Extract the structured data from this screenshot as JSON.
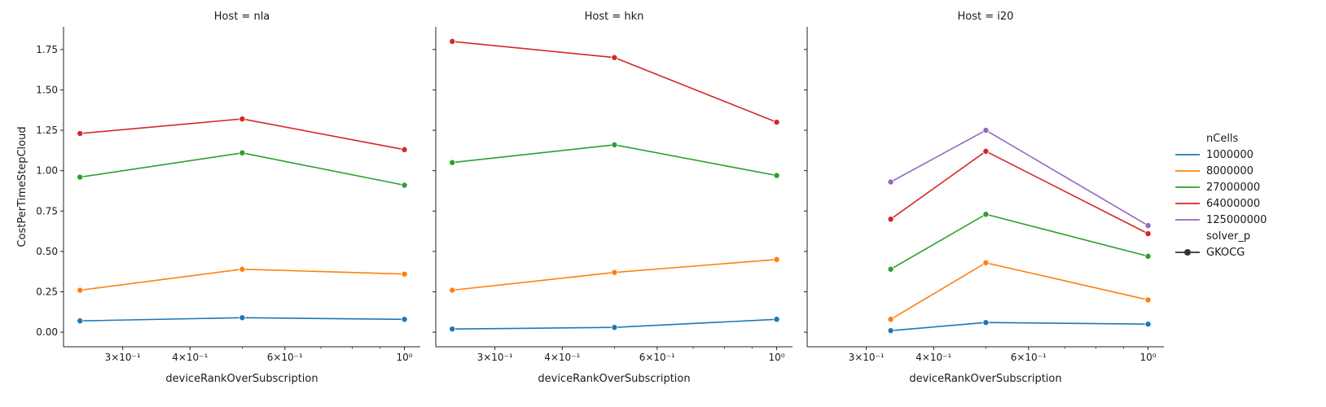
{
  "chart_data": {
    "type": "line",
    "facet_prefix": "Host = ",
    "facets": [
      {
        "title": "Host = nla",
        "x": [
          0.25,
          0.5,
          1.0
        ],
        "series": [
          {
            "name": "1000000",
            "values": [
              0.07,
              0.09,
              0.08
            ]
          },
          {
            "name": "8000000",
            "values": [
              0.26,
              0.39,
              0.36
            ]
          },
          {
            "name": "27000000",
            "values": [
              0.96,
              1.11,
              0.91
            ]
          },
          {
            "name": "64000000",
            "values": [
              1.23,
              1.32,
              1.13
            ]
          }
        ]
      },
      {
        "title": "Host = hkn",
        "x": [
          0.25,
          0.5,
          1.0
        ],
        "series": [
          {
            "name": "1000000",
            "values": [
              0.02,
              0.03,
              0.08
            ]
          },
          {
            "name": "8000000",
            "values": [
              0.26,
              0.37,
              0.45
            ]
          },
          {
            "name": "27000000",
            "values": [
              1.05,
              1.16,
              0.97
            ]
          },
          {
            "name": "64000000",
            "values": [
              1.8,
              1.7,
              1.3
            ]
          }
        ]
      },
      {
        "title": "Host = i20",
        "x": [
          0.333,
          0.5,
          1.0
        ],
        "series": [
          {
            "name": "1000000",
            "values": [
              0.01,
              0.06,
              0.05
            ]
          },
          {
            "name": "8000000",
            "values": [
              0.08,
              0.43,
              0.2
            ]
          },
          {
            "name": "27000000",
            "values": [
              0.39,
              0.73,
              0.47
            ]
          },
          {
            "name": "64000000",
            "values": [
              0.7,
              1.12,
              0.61
            ]
          },
          {
            "name": "125000000",
            "values": [
              0.93,
              1.25,
              0.66
            ]
          }
        ]
      }
    ],
    "xlabel": "deviceRankOverSubscription",
    "ylabel": "CostPerTimeStepCloud",
    "xscale": "log",
    "xlim": [
      0.233,
      1.07
    ],
    "ylim": [
      -0.09,
      1.89
    ],
    "xticks_major": [
      {
        "value": 0.3,
        "label": "3×10⁻¹"
      },
      {
        "value": 0.4,
        "label": "4×10⁻¹"
      },
      {
        "value": 0.6,
        "label": "6×10⁻¹"
      },
      {
        "value": 1.0,
        "label": "10⁰"
      }
    ],
    "xticks_minor": [
      0.5,
      0.7,
      0.8,
      0.9
    ],
    "yticks": [
      0.0,
      0.25,
      0.5,
      0.75,
      1.0,
      1.25,
      1.5,
      1.75
    ],
    "ytick_labels": [
      "0.00",
      "0.25",
      "0.50",
      "0.75",
      "1.00",
      "1.25",
      "1.50",
      "1.75"
    ],
    "grid": false,
    "legend": {
      "placement": "right",
      "hue_title": "nCells",
      "hue_entries": [
        "1000000",
        "8000000",
        "27000000",
        "64000000",
        "125000000"
      ],
      "style_title": "solver_p",
      "style_entries": [
        "GKOCG"
      ]
    },
    "colors": {
      "1000000": "#1f77b4",
      "8000000": "#ff7f0e",
      "27000000": "#2ca02c",
      "64000000": "#d62728",
      "125000000": "#9467bd",
      "style": "#333333"
    }
  }
}
